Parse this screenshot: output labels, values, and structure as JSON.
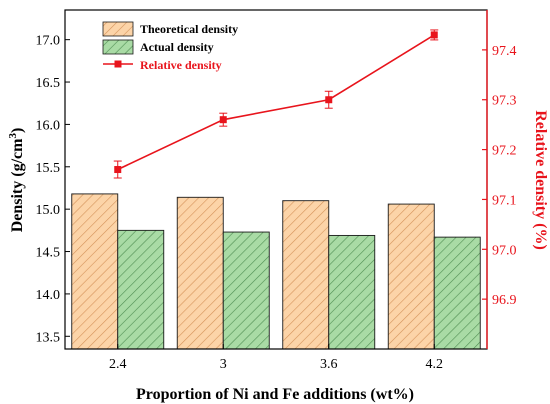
{
  "chart_data": {
    "type": "bar",
    "categories": [
      "2.4",
      "3",
      "3.6",
      "4.2"
    ],
    "xlabel": "Proportion of Ni and Fe additions (wt%)",
    "ylabel": "Density (g/cm",
    "ylabel_sup": "3",
    "ylabel_close": ")",
    "ylim": [
      13.35,
      17.35
    ],
    "yticks": [
      "13.5",
      "14.0",
      "14.5",
      "15.0",
      "15.5",
      "16.0",
      "16.5",
      "17.0"
    ],
    "y2label": "Relative density (%)",
    "y2lim": [
      96.8,
      97.48
    ],
    "y2ticks": [
      "96.9",
      "97.0",
      "97.1",
      "97.2",
      "97.3",
      "97.4"
    ],
    "legend_position": "top-left",
    "series": [
      {
        "name": "Theoretical density",
        "kind": "bar",
        "axis": "left",
        "values": [
          15.18,
          15.14,
          15.1,
          15.06
        ],
        "fill": "#fcd4a8",
        "hatch": "#d4925a",
        "edge": "#1a1a1a"
      },
      {
        "name": "Actual density",
        "kind": "bar",
        "axis": "left",
        "values": [
          14.75,
          14.73,
          14.69,
          14.67
        ],
        "fill": "#a9dba5",
        "hatch": "#4f8e52",
        "edge": "#1a1a1a"
      },
      {
        "name": "Relative density",
        "kind": "line",
        "axis": "right",
        "values": [
          97.16,
          97.26,
          97.3,
          97.43
        ],
        "errors": [
          0.017,
          0.013,
          0.017,
          0.01
        ],
        "color": "#e8141c"
      }
    ]
  },
  "colors": {
    "axis_left": "#000000",
    "axis_right": "#e8141c"
  }
}
